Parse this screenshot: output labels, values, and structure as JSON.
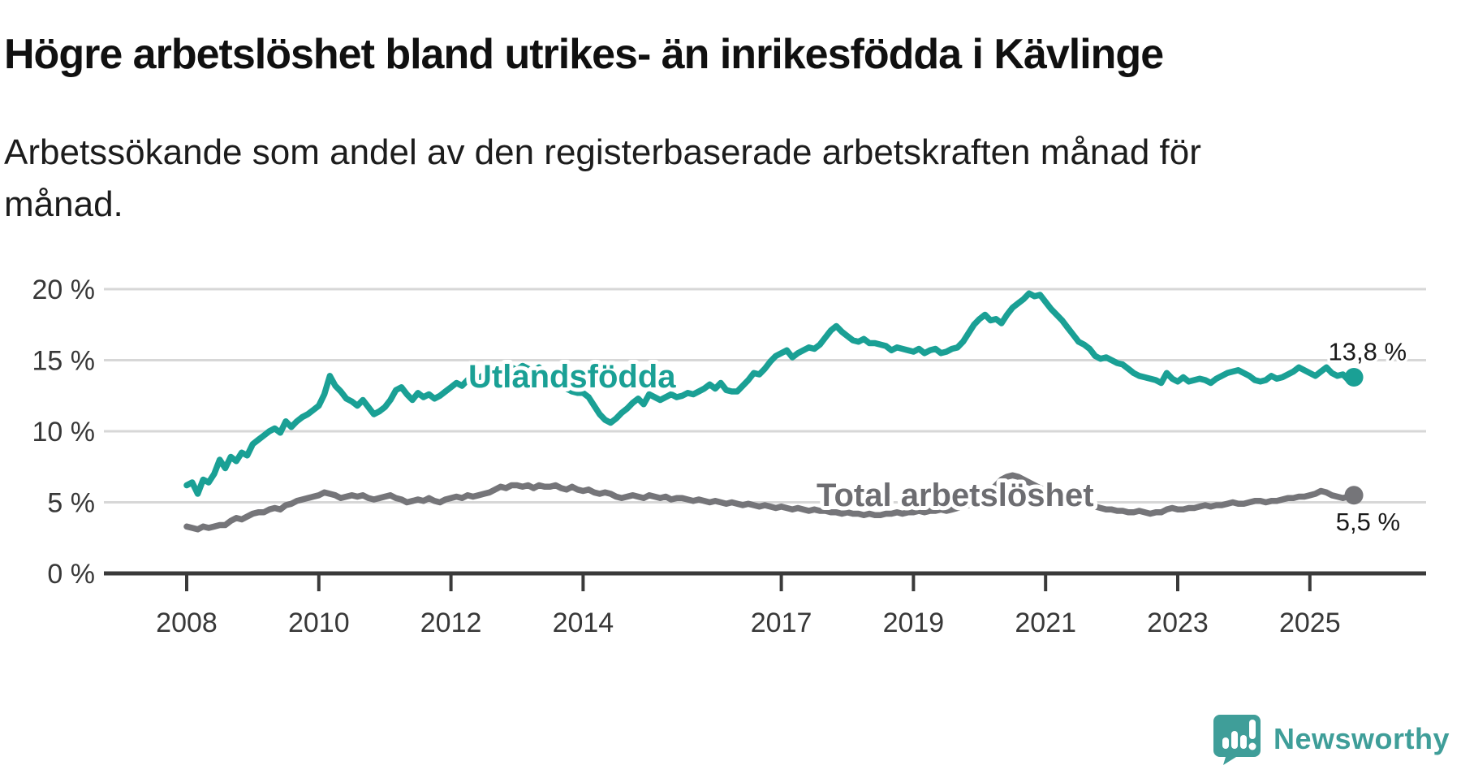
{
  "header": {
    "title": "Högre arbetslöshet bland utrikes- än inrikesfödda i Kävlinge",
    "subtitle": "Arbetssökande som andel av den registerbaserade arbetskraften månad för månad."
  },
  "branding": {
    "name": "Newsworthy",
    "logo_icon": "speech-bubble-bar-chart-icon",
    "logo_color": "#3f9e99"
  },
  "chart_data": {
    "type": "line",
    "title": "Högre arbetslöshet bland utrikes- än inrikesfödda i Kävlinge",
    "xlabel": "",
    "ylabel": "",
    "x_start": "2008-01",
    "x_end": "2025-09",
    "frequency": "monthly",
    "x_range_years": [
      2008.0,
      2025.67
    ],
    "ylim": [
      0,
      21.5
    ],
    "grid": "horizontal",
    "gridline_color": "#d7d7d7",
    "axis_color": "#3a3a3a",
    "x_ticks": [
      {
        "year": 2008,
        "label": "2008"
      },
      {
        "year": 2010,
        "label": "2010"
      },
      {
        "year": 2012,
        "label": "2012"
      },
      {
        "year": 2014,
        "label": "2014"
      },
      {
        "year": 2017,
        "label": "2017"
      },
      {
        "year": 2019,
        "label": "2019"
      },
      {
        "year": 2021,
        "label": "2021"
      },
      {
        "year": 2023,
        "label": "2023"
      },
      {
        "year": 2025,
        "label": "2025"
      }
    ],
    "y_ticks": [
      {
        "value": 20,
        "label": "20 %"
      },
      {
        "value": 15,
        "label": "15 %"
      },
      {
        "value": 10,
        "label": "10 %"
      },
      {
        "value": 5,
        "label": "5 %"
      },
      {
        "value": 0,
        "label": "0 %"
      }
    ],
    "series": [
      {
        "id": "utlandsfodda",
        "name": "Utlandsfödda",
        "color": "#1aa095",
        "label_color": "#1aa095",
        "end_value": 13.8,
        "end_label": "13,8 %",
        "values": [
          6.2,
          6.4,
          5.6,
          6.6,
          6.4,
          7.0,
          8.0,
          7.4,
          8.2,
          7.9,
          8.5,
          8.3,
          9.1,
          9.4,
          9.7,
          10.0,
          10.2,
          9.9,
          10.7,
          10.3,
          10.7,
          11.0,
          11.2,
          11.5,
          11.8,
          12.6,
          13.9,
          13.2,
          12.8,
          12.3,
          12.1,
          11.8,
          12.2,
          11.7,
          11.2,
          11.4,
          11.7,
          12.2,
          12.9,
          13.1,
          12.6,
          12.2,
          12.7,
          12.4,
          12.6,
          12.3,
          12.5,
          12.8,
          13.1,
          13.4,
          13.2,
          13.6,
          13.9,
          13.7,
          14.0,
          13.8,
          14.1,
          14.3,
          14.2,
          14.5,
          14.3,
          14.6,
          14.4,
          14.2,
          14.5,
          14.1,
          13.8,
          13.5,
          13.2,
          13.0,
          12.8,
          12.7,
          12.7,
          12.4,
          11.8,
          11.2,
          10.8,
          10.6,
          10.9,
          11.3,
          11.6,
          12.0,
          12.3,
          11.9,
          12.6,
          12.4,
          12.2,
          12.4,
          12.6,
          12.4,
          12.5,
          12.7,
          12.6,
          12.8,
          13.0,
          13.3,
          13.0,
          13.4,
          12.9,
          12.8,
          12.8,
          13.2,
          13.6,
          14.1,
          14.0,
          14.4,
          14.9,
          15.3,
          15.5,
          15.7,
          15.2,
          15.5,
          15.7,
          15.9,
          15.8,
          16.1,
          16.6,
          17.1,
          17.4,
          17.0,
          16.7,
          16.4,
          16.3,
          16.5,
          16.2,
          16.2,
          16.1,
          16.0,
          15.7,
          15.9,
          15.8,
          15.7,
          15.6,
          15.8,
          15.5,
          15.7,
          15.8,
          15.5,
          15.6,
          15.8,
          15.9,
          16.3,
          16.9,
          17.5,
          17.9,
          18.2,
          17.8,
          17.9,
          17.6,
          18.2,
          18.7,
          19.0,
          19.3,
          19.7,
          19.5,
          19.6,
          19.1,
          18.6,
          18.2,
          17.8,
          17.3,
          16.8,
          16.3,
          16.1,
          15.8,
          15.3,
          15.1,
          15.2,
          15.0,
          14.8,
          14.7,
          14.4,
          14.1,
          13.9,
          13.8,
          13.7,
          13.6,
          13.4,
          14.1,
          13.7,
          13.5,
          13.8,
          13.5,
          13.6,
          13.7,
          13.6,
          13.4,
          13.7,
          13.9,
          14.1,
          14.2,
          14.3,
          14.1,
          13.9,
          13.6,
          13.5,
          13.6,
          13.9,
          13.7,
          13.8,
          14.0,
          14.2,
          14.5,
          14.3,
          14.1,
          13.9,
          14.2,
          14.5,
          14.1,
          13.9,
          14.0,
          13.6,
          13.8
        ]
      },
      {
        "id": "total-arbetsloshet",
        "name": "Total arbetslöshet",
        "color": "#757579",
        "label_color": "#6d6d71",
        "end_value": 5.5,
        "end_label": "5,5 %",
        "values": [
          3.3,
          3.2,
          3.1,
          3.3,
          3.2,
          3.3,
          3.4,
          3.4,
          3.7,
          3.9,
          3.8,
          4.0,
          4.2,
          4.3,
          4.3,
          4.5,
          4.6,
          4.5,
          4.8,
          4.9,
          5.1,
          5.2,
          5.3,
          5.4,
          5.5,
          5.7,
          5.6,
          5.5,
          5.3,
          5.4,
          5.5,
          5.4,
          5.5,
          5.3,
          5.2,
          5.3,
          5.4,
          5.5,
          5.3,
          5.2,
          5.0,
          5.1,
          5.2,
          5.1,
          5.3,
          5.1,
          5.0,
          5.2,
          5.3,
          5.4,
          5.3,
          5.5,
          5.4,
          5.5,
          5.6,
          5.7,
          5.9,
          6.1,
          6.0,
          6.2,
          6.2,
          6.1,
          6.2,
          6.0,
          6.2,
          6.1,
          6.1,
          6.2,
          6.0,
          5.9,
          6.1,
          5.9,
          5.8,
          5.9,
          5.7,
          5.6,
          5.7,
          5.6,
          5.4,
          5.3,
          5.4,
          5.5,
          5.4,
          5.3,
          5.5,
          5.4,
          5.3,
          5.4,
          5.2,
          5.3,
          5.3,
          5.2,
          5.1,
          5.2,
          5.1,
          5.0,
          5.1,
          5.0,
          4.9,
          5.0,
          4.9,
          4.8,
          4.9,
          4.8,
          4.7,
          4.8,
          4.7,
          4.6,
          4.7,
          4.6,
          4.5,
          4.6,
          4.5,
          4.4,
          4.5,
          4.4,
          4.4,
          4.3,
          4.3,
          4.2,
          4.3,
          4.2,
          4.2,
          4.1,
          4.2,
          4.1,
          4.1,
          4.2,
          4.2,
          4.3,
          4.2,
          4.3,
          4.3,
          4.4,
          4.3,
          4.4,
          4.4,
          4.5,
          4.4,
          4.5,
          4.6,
          4.7,
          4.8,
          5.0,
          5.2,
          5.4,
          5.8,
          6.2,
          6.6,
          6.8,
          6.9,
          6.8,
          6.6,
          6.4,
          6.2,
          6.0,
          5.9,
          5.7,
          5.6,
          5.4,
          5.3,
          5.1,
          5.0,
          4.9,
          4.8,
          4.7,
          4.6,
          4.5,
          4.5,
          4.4,
          4.4,
          4.3,
          4.3,
          4.4,
          4.3,
          4.2,
          4.3,
          4.3,
          4.5,
          4.6,
          4.5,
          4.5,
          4.6,
          4.6,
          4.7,
          4.8,
          4.7,
          4.8,
          4.8,
          4.9,
          5.0,
          4.9,
          4.9,
          5.0,
          5.1,
          5.1,
          5.0,
          5.1,
          5.1,
          5.2,
          5.3,
          5.3,
          5.4,
          5.4,
          5.5,
          5.6,
          5.8,
          5.7,
          5.5,
          5.4,
          5.3,
          5.4,
          5.5
        ]
      }
    ]
  }
}
